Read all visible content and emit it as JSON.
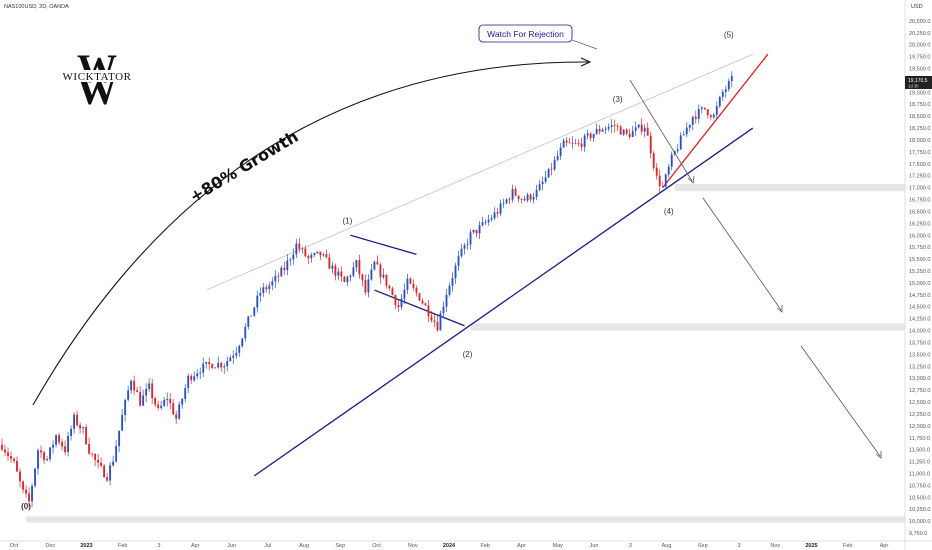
{
  "header": {
    "symbol_line": "NAS100USD, 2D, OANDA",
    "currency": "USD"
  },
  "logo": {
    "text": "WICKTATOR"
  },
  "annotations": {
    "watch": "Watch For Rejection",
    "growth": "+80% Growth",
    "price_tag": "19,170.5",
    "price_tag_sub": "1d 3h"
  },
  "colors": {
    "bull": "#2a52be",
    "bear": "#d9262b",
    "trendline": "#1a1a8c",
    "wedge": "#e01b1b",
    "zone": "#e6e6e6"
  },
  "chart_data": {
    "type": "candlestick",
    "title": "",
    "ylabel": "USD",
    "ylim": [
      9625,
      20875
    ],
    "y_ticks": [
      "20,500.0",
      "20,250.0",
      "20,000.0",
      "19,750.0",
      "19,500.0",
      "19,250.0",
      "19,000.0",
      "18,750.0",
      "18,500.0",
      "18,250.0",
      "18,000.0",
      "17,750.0",
      "17,500.0",
      "17,250.0",
      "17,000.0",
      "16,750.0",
      "16,500.0",
      "16,250.0",
      "16,000.0",
      "15,750.0",
      "15,500.0",
      "15,250.0",
      "15,000.0",
      "14,750.0",
      "14,500.0",
      "14,250.0",
      "14,000.0",
      "13,750.0",
      "13,500.0",
      "13,250.0",
      "13,000.0",
      "12,750.0",
      "12,500.0",
      "12,250.0",
      "12,000.0",
      "11,750.0",
      "11,500.0",
      "11,250.0",
      "11,000.0",
      "10,750.0",
      "10,500.0",
      "10,250.0",
      "10,000.0",
      "9,750.0"
    ],
    "x_ticks": [
      {
        "label": "Oct",
        "bold": false
      },
      {
        "label": "Dec",
        "bold": false
      },
      {
        "label": "2023",
        "bold": true
      },
      {
        "label": "Feb",
        "bold": false
      },
      {
        "label": "3",
        "bold": false
      },
      {
        "label": "Apr",
        "bold": false
      },
      {
        "label": "Jun",
        "bold": false
      },
      {
        "label": "Jul",
        "bold": false
      },
      {
        "label": "Aug",
        "bold": false
      },
      {
        "label": "Sep",
        "bold": false
      },
      {
        "label": "Oct",
        "bold": false
      },
      {
        "label": "Nov",
        "bold": false
      },
      {
        "label": "2024",
        "bold": true
      },
      {
        "label": "Feb",
        "bold": false
      },
      {
        "label": "Apr",
        "bold": false
      },
      {
        "label": "May",
        "bold": false
      },
      {
        "label": "Jun",
        "bold": false
      },
      {
        "label": "3",
        "bold": false
      },
      {
        "label": "Aug",
        "bold": false
      },
      {
        "label": "Sep",
        "bold": false
      },
      {
        "label": "3",
        "bold": false
      },
      {
        "label": "Nov",
        "bold": false
      },
      {
        "label": "2025",
        "bold": true
      },
      {
        "label": "Feb",
        "bold": false
      },
      {
        "label": "Apr",
        "bold": false
      }
    ],
    "x_range": [
      0,
      300
    ],
    "price_waypoints": [
      [
        0,
        11600
      ],
      [
        4,
        11200
      ],
      [
        7,
        10600
      ],
      [
        9,
        10400
      ],
      [
        12,
        11500
      ],
      [
        15,
        11300
      ],
      [
        18,
        11800
      ],
      [
        21,
        11500
      ],
      [
        24,
        12150
      ],
      [
        27,
        11900
      ],
      [
        29,
        11500
      ],
      [
        32,
        11150
      ],
      [
        35,
        10950
      ],
      [
        37,
        11300
      ],
      [
        40,
        12200
      ],
      [
        43,
        13000
      ],
      [
        46,
        12500
      ],
      [
        49,
        12800
      ],
      [
        52,
        12300
      ],
      [
        55,
        12600
      ],
      [
        58,
        12150
      ],
      [
        62,
        13000
      ],
      [
        66,
        13200
      ],
      [
        70,
        13300
      ],
      [
        74,
        13300
      ],
      [
        78,
        13600
      ],
      [
        82,
        14200
      ],
      [
        86,
        14800
      ],
      [
        90,
        15000
      ],
      [
        94,
        15300
      ],
      [
        98,
        15800
      ],
      [
        102,
        15500
      ],
      [
        106,
        15600
      ],
      [
        110,
        15300
      ],
      [
        114,
        15000
      ],
      [
        118,
        15400
      ],
      [
        121,
        14800
      ],
      [
        124,
        15400
      ],
      [
        128,
        15000
      ],
      [
        132,
        14500
      ],
      [
        135,
        15000
      ],
      [
        139,
        14700
      ],
      [
        142,
        14400
      ],
      [
        145,
        14100
      ],
      [
        148,
        14800
      ],
      [
        152,
        15500
      ],
      [
        156,
        16000
      ],
      [
        160,
        16200
      ],
      [
        165,
        16500
      ],
      [
        170,
        16900
      ],
      [
        174,
        16750
      ],
      [
        178,
        16900
      ],
      [
        182,
        17300
      ],
      [
        187,
        17900
      ],
      [
        192,
        17900
      ],
      [
        196,
        18100
      ],
      [
        200,
        18250
      ],
      [
        204,
        18300
      ],
      [
        208,
        18100
      ],
      [
        211,
        18200
      ],
      [
        214,
        18300
      ],
      [
        216,
        17800
      ],
      [
        218,
        17200
      ],
      [
        220,
        17000
      ],
      [
        223,
        17600
      ],
      [
        226,
        18000
      ],
      [
        230,
        18500
      ],
      [
        234,
        18650
      ],
      [
        237,
        18500
      ],
      [
        240,
        19000
      ],
      [
        243,
        19250
      ]
    ],
    "volatility": 140,
    "seed": 7,
    "points": [
      {
        "label": "(0)",
        "x": 8,
        "y": 10250
      },
      {
        "label": "(1)",
        "x": 115,
        "y": 16250
      },
      {
        "label": "(2)",
        "x": 155,
        "y": 13450
      },
      {
        "label": "(3)",
        "x": 205,
        "y": 18800
      },
      {
        "label": "(4)",
        "x": 222,
        "y": 16450
      },
      {
        "label": "(5)",
        "x": 242,
        "y": 20150
      }
    ],
    "zones": [
      {
        "top": 17075,
        "bottom": 16925,
        "x_start": 224
      },
      {
        "top": 14150,
        "bottom": 14000,
        "x_start": 156
      },
      {
        "top": 10100,
        "bottom": 9970,
        "x_start": 8
      }
    ],
    "lines": [
      {
        "name": "support",
        "color": "trendline",
        "from": [
          84,
          10950
        ],
        "to": [
          250,
          18250
        ]
      },
      {
        "name": "upper-channel",
        "color": "gray",
        "from": [
          68,
          14850
        ],
        "to": [
          250,
          19800
        ]
      },
      {
        "name": "flag-top",
        "color": "trendline",
        "from": [
          116,
          16000
        ],
        "to": [
          138,
          15600
        ]
      },
      {
        "name": "flag-bottom",
        "color": "trendline",
        "from": [
          124,
          14850
        ],
        "to": [
          154,
          14100
        ]
      },
      {
        "name": "wedge-red",
        "color": "wedge",
        "from": [
          220,
          17000
        ],
        "to": [
          255,
          19800
        ]
      }
    ]
  }
}
